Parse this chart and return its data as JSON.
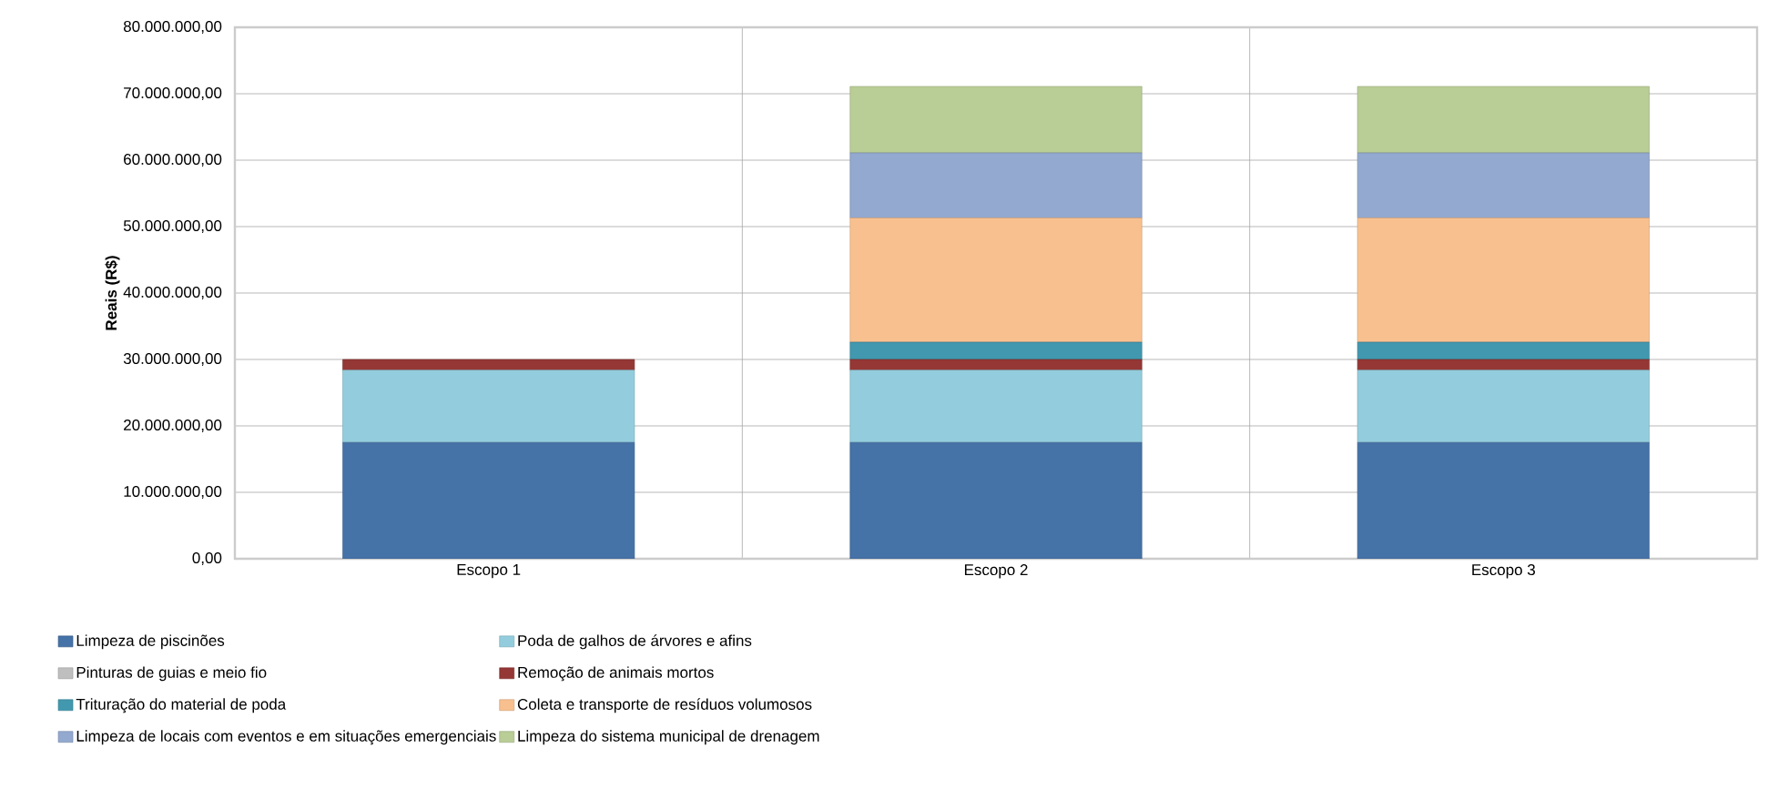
{
  "chart_data": {
    "type": "bar",
    "stacked": true,
    "ylabel": "Reais (R$)",
    "categories": [
      "Escopo 1",
      "Escopo 2",
      "Escopo 3"
    ],
    "series": [
      {
        "name": "Limpeza de piscinões",
        "color": "#4572a7",
        "values": [
          17500000,
          17500000,
          17500000
        ]
      },
      {
        "name": "Poda de galhos de árvores e afins",
        "color": "#93cddd",
        "values": [
          10900000,
          10900000,
          10900000
        ]
      },
      {
        "name": "Pinturas de guias e meio fio",
        "color": "#bfbfbf",
        "values": [
          0,
          0,
          0
        ]
      },
      {
        "name": "Remoção de animais mortos",
        "color": "#953735",
        "values": [
          1600000,
          1600000,
          1600000
        ]
      },
      {
        "name": "Trituração do material de poda",
        "color": "#4198af",
        "values": [
          0,
          2600000,
          2600000
        ]
      },
      {
        "name": "Coleta e transporte de resíduos volumosos",
        "color": "#f9c08f",
        "values": [
          0,
          18700000,
          18700000
        ]
      },
      {
        "name": "Limpeza de locais com eventos e em situações emergenciais",
        "color": "#93a9cf",
        "values": [
          0,
          9800000,
          9800000
        ]
      },
      {
        "name": "Limpeza do sistema municipal de drenagem",
        "color": "#b9cd96",
        "values": [
          0,
          10000000,
          10000000
        ]
      }
    ],
    "ylim": [
      0,
      80000000
    ],
    "yticks": [
      {
        "value": 0,
        "label": "0,00"
      },
      {
        "value": 10000000,
        "label": "10.000.000,00"
      },
      {
        "value": 20000000,
        "label": "20.000.000,00"
      },
      {
        "value": 30000000,
        "label": "30.000.000,00"
      },
      {
        "value": 40000000,
        "label": "40.000.000,00"
      },
      {
        "value": 50000000,
        "label": "50.000.000,00"
      },
      {
        "value": 60000000,
        "label": "60.000.000,00"
      },
      {
        "value": 70000000,
        "label": "70.000.000,00"
      },
      {
        "value": 80000000,
        "label": "80.000.000,00"
      }
    ],
    "grid": true,
    "legend": "bottom"
  }
}
